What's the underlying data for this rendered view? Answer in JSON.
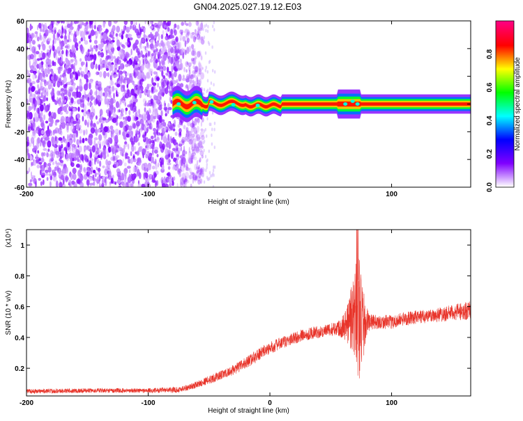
{
  "figure": {
    "title": "GN04.2025.027.19.12.E03"
  },
  "chart_data": [
    {
      "type": "heatmap",
      "title": "GN04.2025.027.19.12.E03",
      "xlabel": "Height of straight line (km)",
      "ylabel": "Frequency (Hz)",
      "xlim": [
        -200,
        165
      ],
      "ylim": [
        -60,
        60
      ],
      "xticks": [
        -200,
        -100,
        0,
        100
      ],
      "yticks": [
        60,
        40,
        20,
        0,
        -20,
        -40,
        -60
      ],
      "noise_region_x": [
        -200,
        -55
      ],
      "noise_amplitude": 0.2,
      "signal_x": [
        -80,
        165
      ],
      "signal_amplitude": 0.85,
      "signal_center_freq_hz": 0,
      "grid": false,
      "colorbar": {
        "label": "Normalized spectral amplitude",
        "range": [
          0,
          1
        ],
        "ticks": [
          "0.0",
          "0.2",
          "0.4",
          "0.6",
          "0.8"
        ],
        "colors": [
          "#ffffff",
          "#8000ff",
          "#0000ff",
          "#00ffff",
          "#00ff00",
          "#ffff00",
          "#ff0000",
          "#ff0080"
        ]
      }
    },
    {
      "type": "line",
      "xlabel": "Height of straight line (km)",
      "ylabel": "SNR (10 * v/v)",
      "ymultiplier": "(x10⁴)",
      "xlim": [
        -200,
        165
      ],
      "ylim": [
        0.02,
        1.1
      ],
      "xticks": [
        -200,
        -100,
        0,
        100
      ],
      "yticks": [
        "0.2",
        "0.4",
        "0.6",
        "0.8",
        "1"
      ],
      "grid": false,
      "series": [
        {
          "color": "#e8342a",
          "x": [
            -200,
            -150,
            -100,
            -75,
            -65,
            -55,
            -45,
            -35,
            -25,
            -15,
            -5,
            5,
            15,
            25,
            35,
            45,
            55,
            62,
            66,
            70,
            72,
            74,
            76,
            78,
            82,
            90,
            100,
            110,
            120,
            130,
            140,
            150,
            160,
            165
          ],
          "y": [
            0.05,
            0.055,
            0.055,
            0.06,
            0.08,
            0.11,
            0.14,
            0.17,
            0.21,
            0.26,
            0.31,
            0.35,
            0.38,
            0.41,
            0.43,
            0.44,
            0.46,
            0.48,
            0.52,
            0.55,
            0.6,
            0.5,
            0.45,
            0.5,
            0.5,
            0.5,
            0.5,
            0.52,
            0.53,
            0.54,
            0.55,
            0.56,
            0.57,
            0.58
          ],
          "noise_amplitude": [
            0.015,
            0.015,
            0.015,
            0.02,
            0.02,
            0.025,
            0.03,
            0.03,
            0.035,
            0.04,
            0.04,
            0.04,
            0.04,
            0.04,
            0.04,
            0.04,
            0.045,
            0.1,
            0.2,
            0.3,
            0.5,
            0.4,
            0.3,
            0.15,
            0.05,
            0.045,
            0.045,
            0.045,
            0.045,
            0.045,
            0.05,
            0.05,
            0.06,
            0.06
          ]
        }
      ]
    }
  ]
}
